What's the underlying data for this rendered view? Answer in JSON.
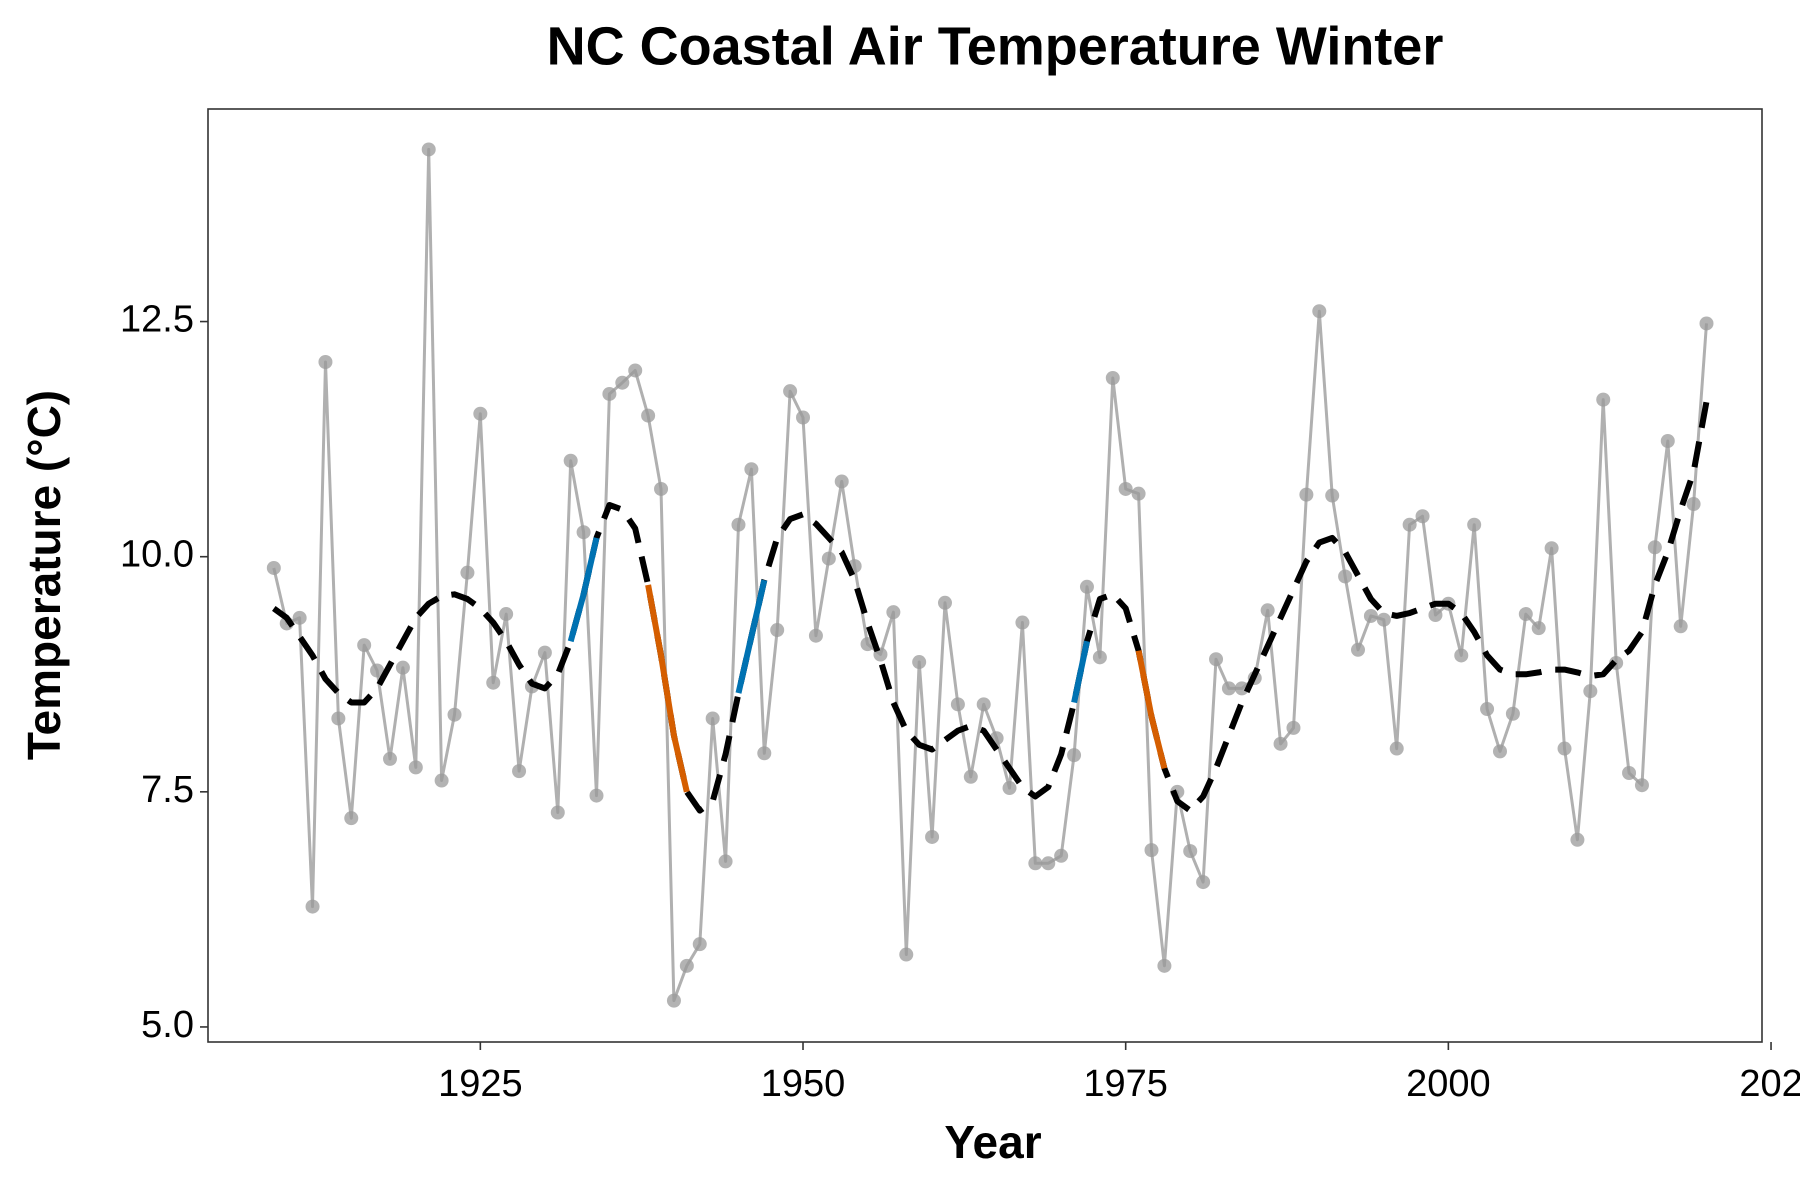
{
  "chart_data": {
    "type": "line",
    "title": "NC Coastal Air Temperature Winter",
    "x_label": "Year",
    "y_label": "Temperature (°C)",
    "x": [
      1909,
      1910,
      1911,
      1912,
      1913,
      1914,
      1915,
      1916,
      1917,
      1918,
      1919,
      1920,
      1921,
      1922,
      1923,
      1924,
      1925,
      1926,
      1927,
      1928,
      1929,
      1930,
      1931,
      1932,
      1933,
      1934,
      1935,
      1936,
      1937,
      1938,
      1939,
      1940,
      1941,
      1942,
      1943,
      1944,
      1945,
      1946,
      1947,
      1948,
      1949,
      1950,
      1951,
      1952,
      1953,
      1954,
      1955,
      1956,
      1957,
      1958,
      1959,
      1960,
      1961,
      1962,
      1963,
      1964,
      1965,
      1966,
      1967,
      1968,
      1969,
      1970,
      1971,
      1972,
      1973,
      1974,
      1975,
      1976,
      1977,
      1978,
      1979,
      1980,
      1981,
      1982,
      1983,
      1984,
      1985,
      1986,
      1987,
      1988,
      1989,
      1990,
      1991,
      1992,
      1993,
      1994,
      1995,
      1996,
      1997,
      1998,
      1999,
      2000,
      2001,
      2002,
      2003,
      2004,
      2005,
      2006,
      2007,
      2008,
      2009,
      2010,
      2011,
      2012,
      2013,
      2014,
      2015,
      2016,
      2017,
      2018,
      2019,
      2020
    ],
    "series": [
      {
        "color": "#b0b0b0",
        "marker": true,
        "dash": false,
        "values": [
          9.88,
          9.29,
          9.35,
          6.28,
          12.07,
          8.28,
          7.22,
          9.06,
          8.79,
          7.85,
          8.82,
          7.76,
          14.33,
          7.62,
          8.32,
          9.83,
          11.52,
          8.66,
          9.39,
          7.72,
          8.62,
          8.98,
          7.28,
          11.02,
          10.26,
          7.46,
          11.73,
          11.85,
          11.98,
          11.5,
          10.72,
          5.28,
          5.65,
          5.88,
          8.28,
          6.76,
          10.34,
          10.93,
          7.91,
          9.22,
          11.76,
          11.48,
          9.16,
          9.98,
          10.8,
          9.9,
          9.07,
          8.96,
          9.41,
          5.77,
          8.88,
          7.02,
          9.51,
          8.43,
          7.66,
          8.43,
          8.07,
          7.54,
          9.3,
          6.74,
          6.74,
          6.82,
          7.89,
          9.68,
          8.93,
          11.9,
          10.72,
          10.67,
          6.88,
          5.65,
          7.5,
          6.87,
          6.54,
          8.91,
          8.6,
          8.6,
          8.71,
          9.43,
          8.01,
          8.18,
          10.66,
          12.61,
          10.65,
          9.79,
          9.01,
          9.37,
          9.33,
          7.96,
          10.34,
          10.43,
          9.38,
          9.5,
          8.95,
          10.34,
          8.38,
          7.93,
          8.33,
          9.39,
          9.24,
          10.09,
          7.96,
          6.99,
          8.57,
          11.67,
          8.87,
          7.7,
          7.57,
          10.1,
          11.23,
          9.26,
          10.56,
          12.48
        ]
      },
      {
        "color": "#000000",
        "marker": false,
        "dash": true,
        "values": [
          9.45,
          9.35,
          9.15,
          8.95,
          8.7,
          8.55,
          8.45,
          8.45,
          8.6,
          8.85,
          9.1,
          9.35,
          9.5,
          9.58,
          9.6,
          9.55,
          9.45,
          9.3,
          9.1,
          8.85,
          8.65,
          8.6,
          8.75,
          9.1,
          9.6,
          10.2,
          10.55,
          10.5,
          10.3,
          9.7,
          8.95,
          8.1,
          7.5,
          7.3,
          7.4,
          7.9,
          8.55,
          9.15,
          9.75,
          10.2,
          10.4,
          10.45,
          10.35,
          10.2,
          10.05,
          9.75,
          9.3,
          8.9,
          8.45,
          8.15,
          8.0,
          7.95,
          8.05,
          8.15,
          8.2,
          8.15,
          7.95,
          7.75,
          7.55,
          7.45,
          7.55,
          7.9,
          8.45,
          9.1,
          9.55,
          9.6,
          9.45,
          9.0,
          8.3,
          7.75,
          7.4,
          7.3,
          7.45,
          7.75,
          8.1,
          8.45,
          8.75,
          9.05,
          9.35,
          9.65,
          9.95,
          10.15,
          10.2,
          10.05,
          9.8,
          9.55,
          9.4,
          9.37,
          9.4,
          9.45,
          9.5,
          9.5,
          9.4,
          9.2,
          8.95,
          8.8,
          8.75,
          8.75,
          8.77,
          8.8,
          8.8,
          8.77,
          8.73,
          8.75,
          8.9,
          9.0,
          9.2,
          9.7,
          10.05,
          10.5,
          10.9,
          11.65
        ]
      },
      {
        "color": "#0072b2",
        "marker": false,
        "dash": false,
        "values": [
          null,
          null,
          null,
          null,
          null,
          null,
          null,
          null,
          null,
          null,
          null,
          null,
          null,
          null,
          null,
          null,
          null,
          null,
          null,
          null,
          null,
          null,
          null,
          9.1,
          9.6,
          10.2,
          null,
          null,
          null,
          null,
          null,
          null,
          null,
          null,
          null,
          null,
          8.55,
          9.15,
          9.75,
          null,
          null,
          null,
          null,
          null,
          null,
          null,
          null,
          null,
          null,
          null,
          null,
          null,
          null,
          null,
          null,
          null,
          null,
          null,
          null,
          null,
          null,
          null,
          8.45,
          9.1,
          null,
          null,
          null,
          null,
          null,
          null,
          null,
          null,
          null,
          null,
          null,
          null,
          null,
          null,
          null,
          null,
          null,
          null,
          null,
          null,
          null,
          null,
          null,
          null,
          null,
          null,
          null,
          null,
          null,
          null,
          null,
          null,
          null,
          null,
          null,
          null,
          null,
          null,
          null,
          null,
          null,
          null,
          null,
          null,
          null,
          null,
          null,
          null
        ]
      },
      {
        "color": "#d55e00",
        "marker": false,
        "dash": false,
        "values": [
          null,
          null,
          null,
          null,
          null,
          null,
          null,
          null,
          null,
          null,
          null,
          null,
          null,
          null,
          null,
          null,
          null,
          null,
          null,
          null,
          null,
          null,
          null,
          null,
          null,
          null,
          null,
          null,
          null,
          9.7,
          8.95,
          8.1,
          7.5,
          null,
          null,
          null,
          null,
          null,
          null,
          null,
          null,
          null,
          null,
          null,
          null,
          null,
          null,
          null,
          null,
          null,
          null,
          null,
          null,
          null,
          null,
          null,
          null,
          null,
          null,
          null,
          null,
          null,
          null,
          null,
          null,
          null,
          null,
          9.0,
          8.3,
          7.75,
          null,
          null,
          null,
          null,
          null,
          null,
          null,
          null,
          null,
          null,
          null,
          null,
          null,
          null,
          null,
          null,
          null,
          null,
          null,
          null,
          null,
          null,
          null,
          null,
          null,
          null,
          null,
          null,
          null,
          null,
          null,
          null,
          null,
          null,
          null,
          null,
          null,
          null,
          null,
          null,
          null,
          null
        ]
      }
    ],
    "xlim": [
      1903.9,
      2024.3
    ],
    "ylim": [
      4.84,
      14.76
    ],
    "xticks": [
      1925,
      1950,
      1975,
      2000,
      {
        "value": 2025,
        "label": "202"
      }
    ],
    "yticks": [
      {
        "value": 5,
        "label": "5.0"
      },
      7.5,
      {
        "value": 10,
        "label": "10.0"
      },
      12.5
    ],
    "grid": false
  }
}
